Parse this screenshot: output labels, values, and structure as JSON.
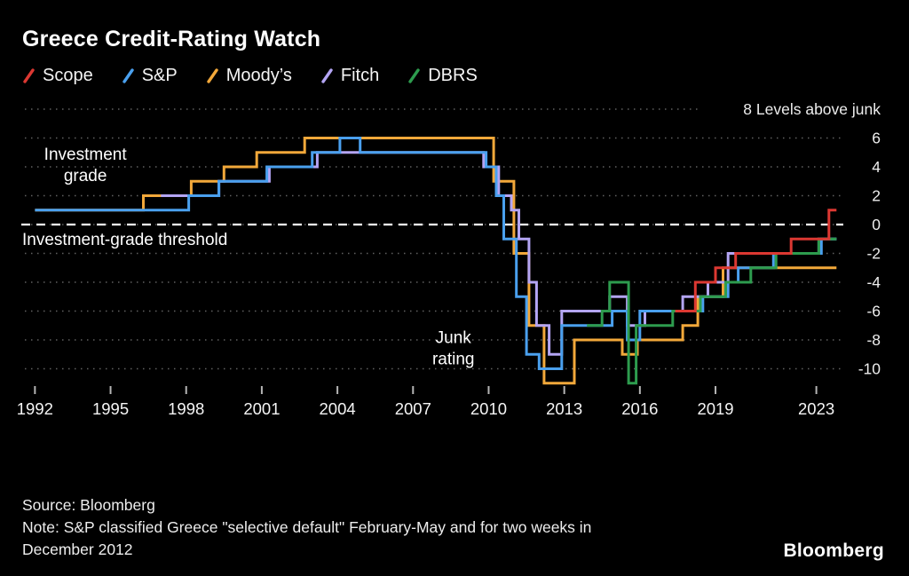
{
  "title": "Greece Credit-Rating Watch",
  "footer": {
    "source": "Source: Bloomberg",
    "note": "Note: S&P classified Greece \"selective default\" February-May and for two weeks in December 2012",
    "logo": "Bloomberg"
  },
  "chart_data": {
    "type": "line",
    "step": true,
    "title": "Greece Credit-Rating Watch",
    "y_axis": {
      "ticks": [
        8,
        6,
        4,
        2,
        0,
        -2,
        -4,
        -6,
        -8,
        -10
      ],
      "top_label": "Levels above junk",
      "range": [
        -11,
        8
      ],
      "grid": "dotted"
    },
    "x_axis": {
      "ticks": [
        1992,
        1995,
        1998,
        2001,
        2004,
        2007,
        2010,
        2013,
        2016,
        2019,
        2023
      ],
      "range": [
        1991.6,
        2024.0
      ]
    },
    "threshold": {
      "value": 0,
      "label": "Investment-grade threshold"
    },
    "annotations": [
      {
        "lines": [
          "Investment",
          "grade"
        ],
        "x": 1994.0,
        "y": 4.5
      },
      {
        "lines": [
          "Junk",
          "rating"
        ],
        "x": 2008.6,
        "y": -8.2
      }
    ],
    "legend_position": "top",
    "draw_order": [
      "Moody’s",
      "Fitch",
      "S&P",
      "DBRS",
      "Scope"
    ],
    "series": [
      {
        "name": "Scope",
        "color": "#dc3832",
        "points": [
          [
            2017.4,
            -6
          ],
          [
            2018.2,
            -4
          ],
          [
            2019.0,
            -3
          ],
          [
            2019.8,
            -2
          ],
          [
            2022.0,
            -1
          ],
          [
            2023.5,
            1
          ],
          [
            2023.8,
            1
          ]
        ]
      },
      {
        "name": "S&P",
        "color": "#4aa0ee",
        "points": [
          [
            1992,
            1
          ],
          [
            1998.1,
            2
          ],
          [
            1999.3,
            3
          ],
          [
            2001.2,
            4
          ],
          [
            2003.0,
            5
          ],
          [
            2004.1,
            6
          ],
          [
            2004.9,
            5
          ],
          [
            2009.9,
            4
          ],
          [
            2010.3,
            2
          ],
          [
            2010.6,
            -1
          ],
          [
            2011.1,
            -5
          ],
          [
            2011.5,
            -9
          ],
          [
            2012.0,
            -10
          ],
          [
            2012.9,
            -7
          ],
          [
            2014.9,
            -6
          ],
          [
            2015.5,
            -8
          ],
          [
            2016.0,
            -6
          ],
          [
            2018.5,
            -5
          ],
          [
            2019.5,
            -4
          ],
          [
            2019.9,
            -3
          ],
          [
            2021.3,
            -2
          ],
          [
            2023.2,
            -1
          ],
          [
            2023.8,
            -1
          ]
        ]
      },
      {
        "name": "Moody’s",
        "color": "#f2a83a",
        "points": [
          [
            1992,
            1
          ],
          [
            1996.3,
            2
          ],
          [
            1998.2,
            3
          ],
          [
            1999.5,
            4
          ],
          [
            2000.8,
            5
          ],
          [
            2002.7,
            6
          ],
          [
            2010.2,
            3
          ],
          [
            2011.0,
            -2
          ],
          [
            2011.6,
            -7
          ],
          [
            2012.2,
            -11
          ],
          [
            2013.4,
            -8
          ],
          [
            2015.3,
            -9
          ],
          [
            2015.9,
            -8
          ],
          [
            2017.7,
            -7
          ],
          [
            2018.3,
            -5
          ],
          [
            2019.3,
            -3
          ],
          [
            2023.8,
            -3
          ]
        ]
      },
      {
        "name": "Fitch",
        "color": "#b4a5f4",
        "points": [
          [
            1997.0,
            2
          ],
          [
            1999.3,
            3
          ],
          [
            2001.3,
            4
          ],
          [
            2003.2,
            5
          ],
          [
            2009.8,
            4
          ],
          [
            2010.4,
            2
          ],
          [
            2010.9,
            1
          ],
          [
            2011.2,
            -1
          ],
          [
            2011.6,
            -4
          ],
          [
            2011.9,
            -7
          ],
          [
            2012.4,
            -9
          ],
          [
            2012.9,
            -6
          ],
          [
            2014.8,
            -5
          ],
          [
            2015.5,
            -7
          ],
          [
            2016.2,
            -6
          ],
          [
            2017.7,
            -5
          ],
          [
            2018.7,
            -4
          ],
          [
            2019.5,
            -2
          ],
          [
            2023.1,
            -1
          ],
          [
            2023.8,
            -1
          ]
        ]
      },
      {
        "name": "DBRS",
        "color": "#2d9c4e",
        "points": [
          [
            2013.9,
            -7
          ],
          [
            2014.5,
            -6
          ],
          [
            2014.8,
            -4
          ],
          [
            2015.55,
            -11
          ],
          [
            2015.85,
            -7
          ],
          [
            2017.3,
            -6
          ],
          [
            2018.4,
            -5
          ],
          [
            2019.4,
            -4
          ],
          [
            2020.4,
            -3
          ],
          [
            2021.4,
            -2
          ],
          [
            2023.1,
            -1
          ],
          [
            2023.8,
            -1
          ]
        ]
      }
    ]
  }
}
